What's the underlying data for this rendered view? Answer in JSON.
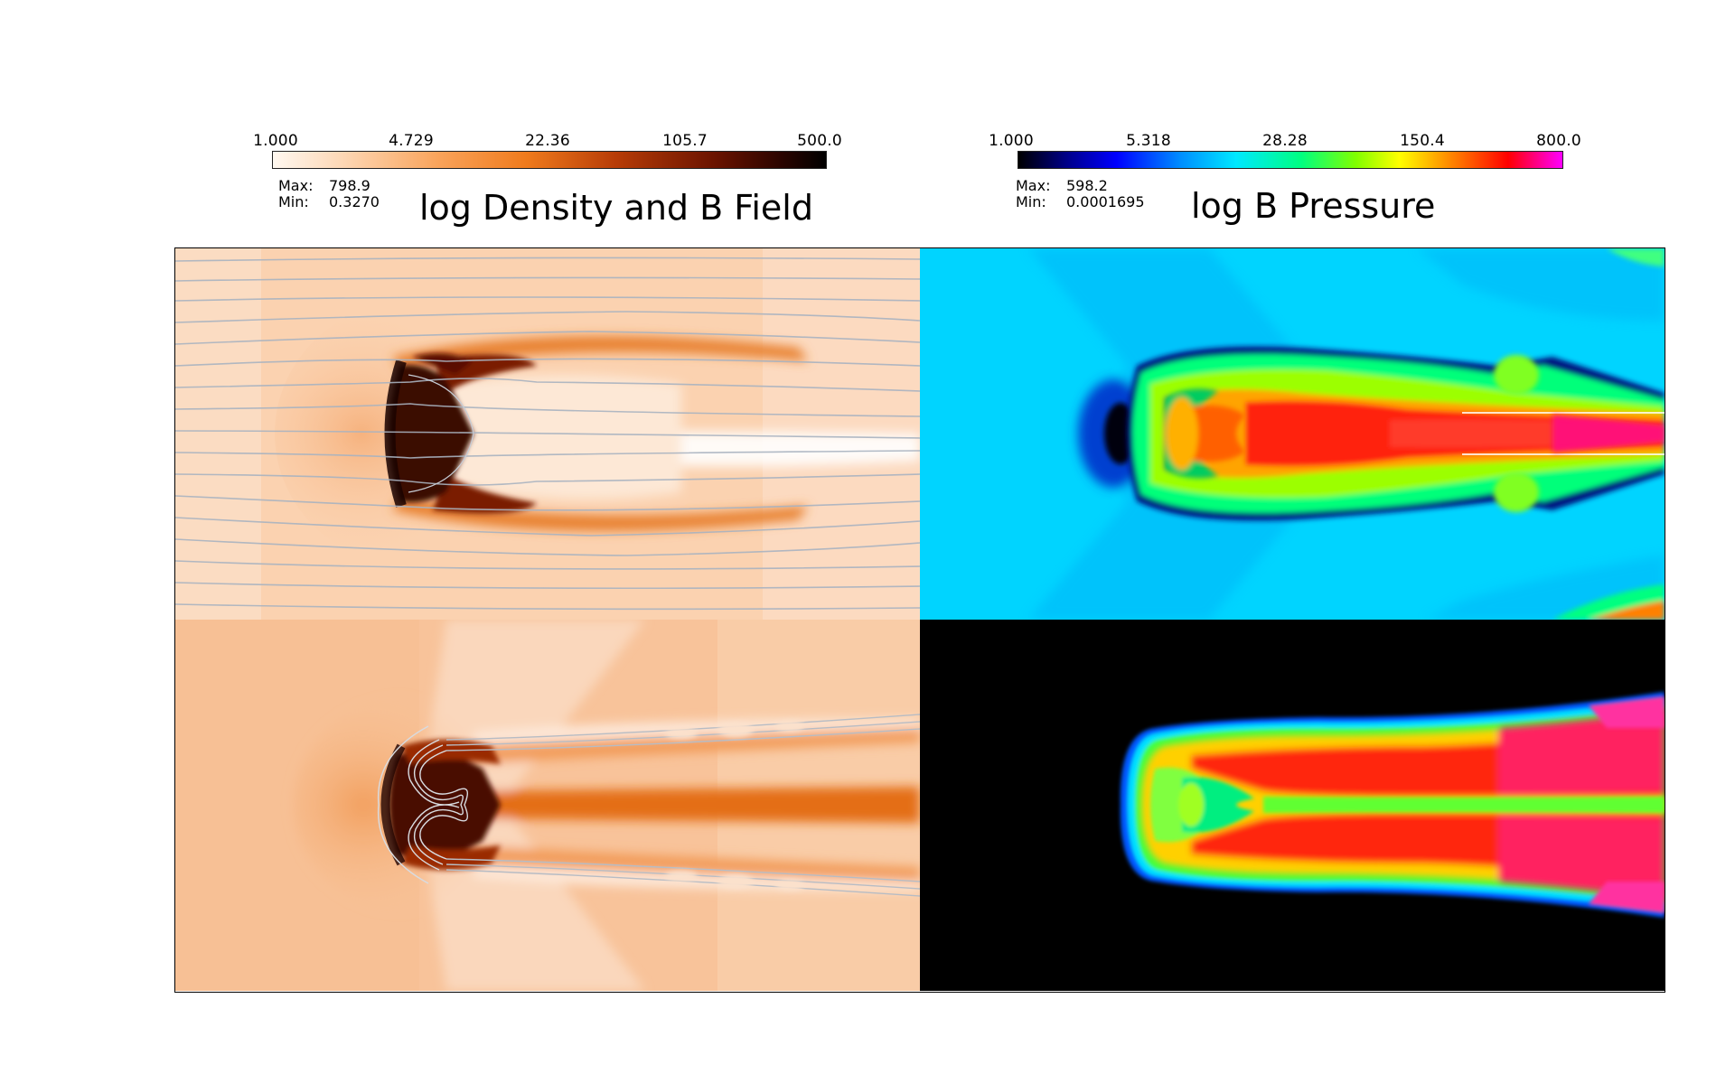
{
  "density": {
    "title": "log Density and B Field",
    "ticks": [
      "1.000",
      "4.729",
      "22.36",
      "105.7",
      "500.0"
    ],
    "max_label": "Max:",
    "max_value": "798.9",
    "min_label": "Min:",
    "min_value": "0.3270"
  },
  "bpressure": {
    "title": "log B Pressure",
    "ticks": [
      "1.000",
      "5.318",
      "28.28",
      "150.4",
      "800.0"
    ],
    "max_label": "Max:",
    "max_value": "598.2",
    "min_label": "Min:",
    "min_value": "0.0001695"
  },
  "colormaps": {
    "density": [
      "#fff8f0",
      "#f9a35a",
      "#ef7a1c",
      "#6a1300",
      "#000000"
    ],
    "bpressure": [
      "#000000",
      "#0000ff",
      "#00e8ff",
      "#80ff00",
      "#ffff00",
      "#ff0000",
      "#ff00ff"
    ]
  }
}
